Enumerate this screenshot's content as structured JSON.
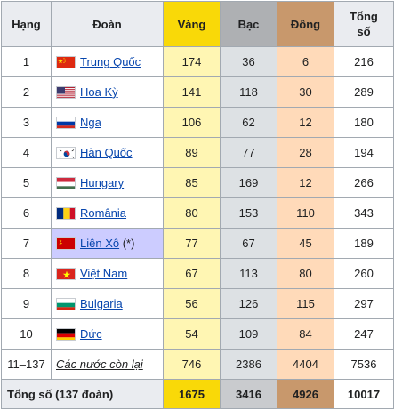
{
  "headers": {
    "rank": "Hạng",
    "team": "Đoàn",
    "gold": "Vàng",
    "silver": "Bạc",
    "bronze": "Đồng",
    "total_line1": "Tổng",
    "total_line2": "số"
  },
  "colors": {
    "gold_header": "#f9d908",
    "silver_header": "#aeb0b3",
    "bronze_header": "#c8986c",
    "gold_cell": "#fff6b3",
    "silver_cell": "#dde1e4",
    "bronze_cell": "#ffdab9",
    "host_cell": "#ccccff",
    "link": "#0645ad"
  },
  "rows": [
    {
      "rank": "1",
      "team": "Trung Quốc",
      "flag": "flag-china-icon",
      "gold": "174",
      "silver": "36",
      "bronze": "6",
      "total": "216"
    },
    {
      "rank": "2",
      "team": "Hoa Kỳ",
      "flag": "flag-usa-icon",
      "gold": "141",
      "silver": "118",
      "bronze": "30",
      "total": "289"
    },
    {
      "rank": "3",
      "team": "Nga",
      "flag": "flag-russia-icon",
      "gold": "106",
      "silver": "62",
      "bronze": "12",
      "total": "180"
    },
    {
      "rank": "4",
      "team": "Hàn Quốc",
      "flag": "flag-south-korea-icon",
      "gold": "89",
      "silver": "77",
      "bronze": "28",
      "total": "194"
    },
    {
      "rank": "5",
      "team": "Hungary",
      "flag": "flag-hungary-icon",
      "gold": "85",
      "silver": "169",
      "bronze": "12",
      "total": "266"
    },
    {
      "rank": "6",
      "team": "România",
      "flag": "flag-romania-icon",
      "gold": "80",
      "silver": "153",
      "bronze": "110",
      "total": "343"
    },
    {
      "rank": "7",
      "team": "Liên Xô",
      "suffix": " (*)",
      "flag": "flag-soviet-union-icon",
      "gold": "77",
      "silver": "67",
      "bronze": "45",
      "total": "189"
    },
    {
      "rank": "8",
      "team": "Việt Nam",
      "flag": "flag-vietnam-icon",
      "gold": "67",
      "silver": "113",
      "bronze": "80",
      "total": "260"
    },
    {
      "rank": "9",
      "team": "Bulgaria",
      "flag": "flag-bulgaria-icon",
      "gold": "56",
      "silver": "126",
      "bronze": "115",
      "total": "297"
    },
    {
      "rank": "10",
      "team": "Đức",
      "flag": "flag-germany-icon",
      "gold": "54",
      "silver": "109",
      "bronze": "84",
      "total": "247"
    },
    {
      "rank": "11–137",
      "team": "Các nước còn lại",
      "flag": "",
      "gold": "746",
      "silver": "2386",
      "bronze": "4404",
      "total": "7536"
    }
  ],
  "footer": {
    "label": "Tổng số (137 đoàn)",
    "gold": "1675",
    "silver": "3416",
    "bronze": "4926",
    "total": "10017"
  }
}
